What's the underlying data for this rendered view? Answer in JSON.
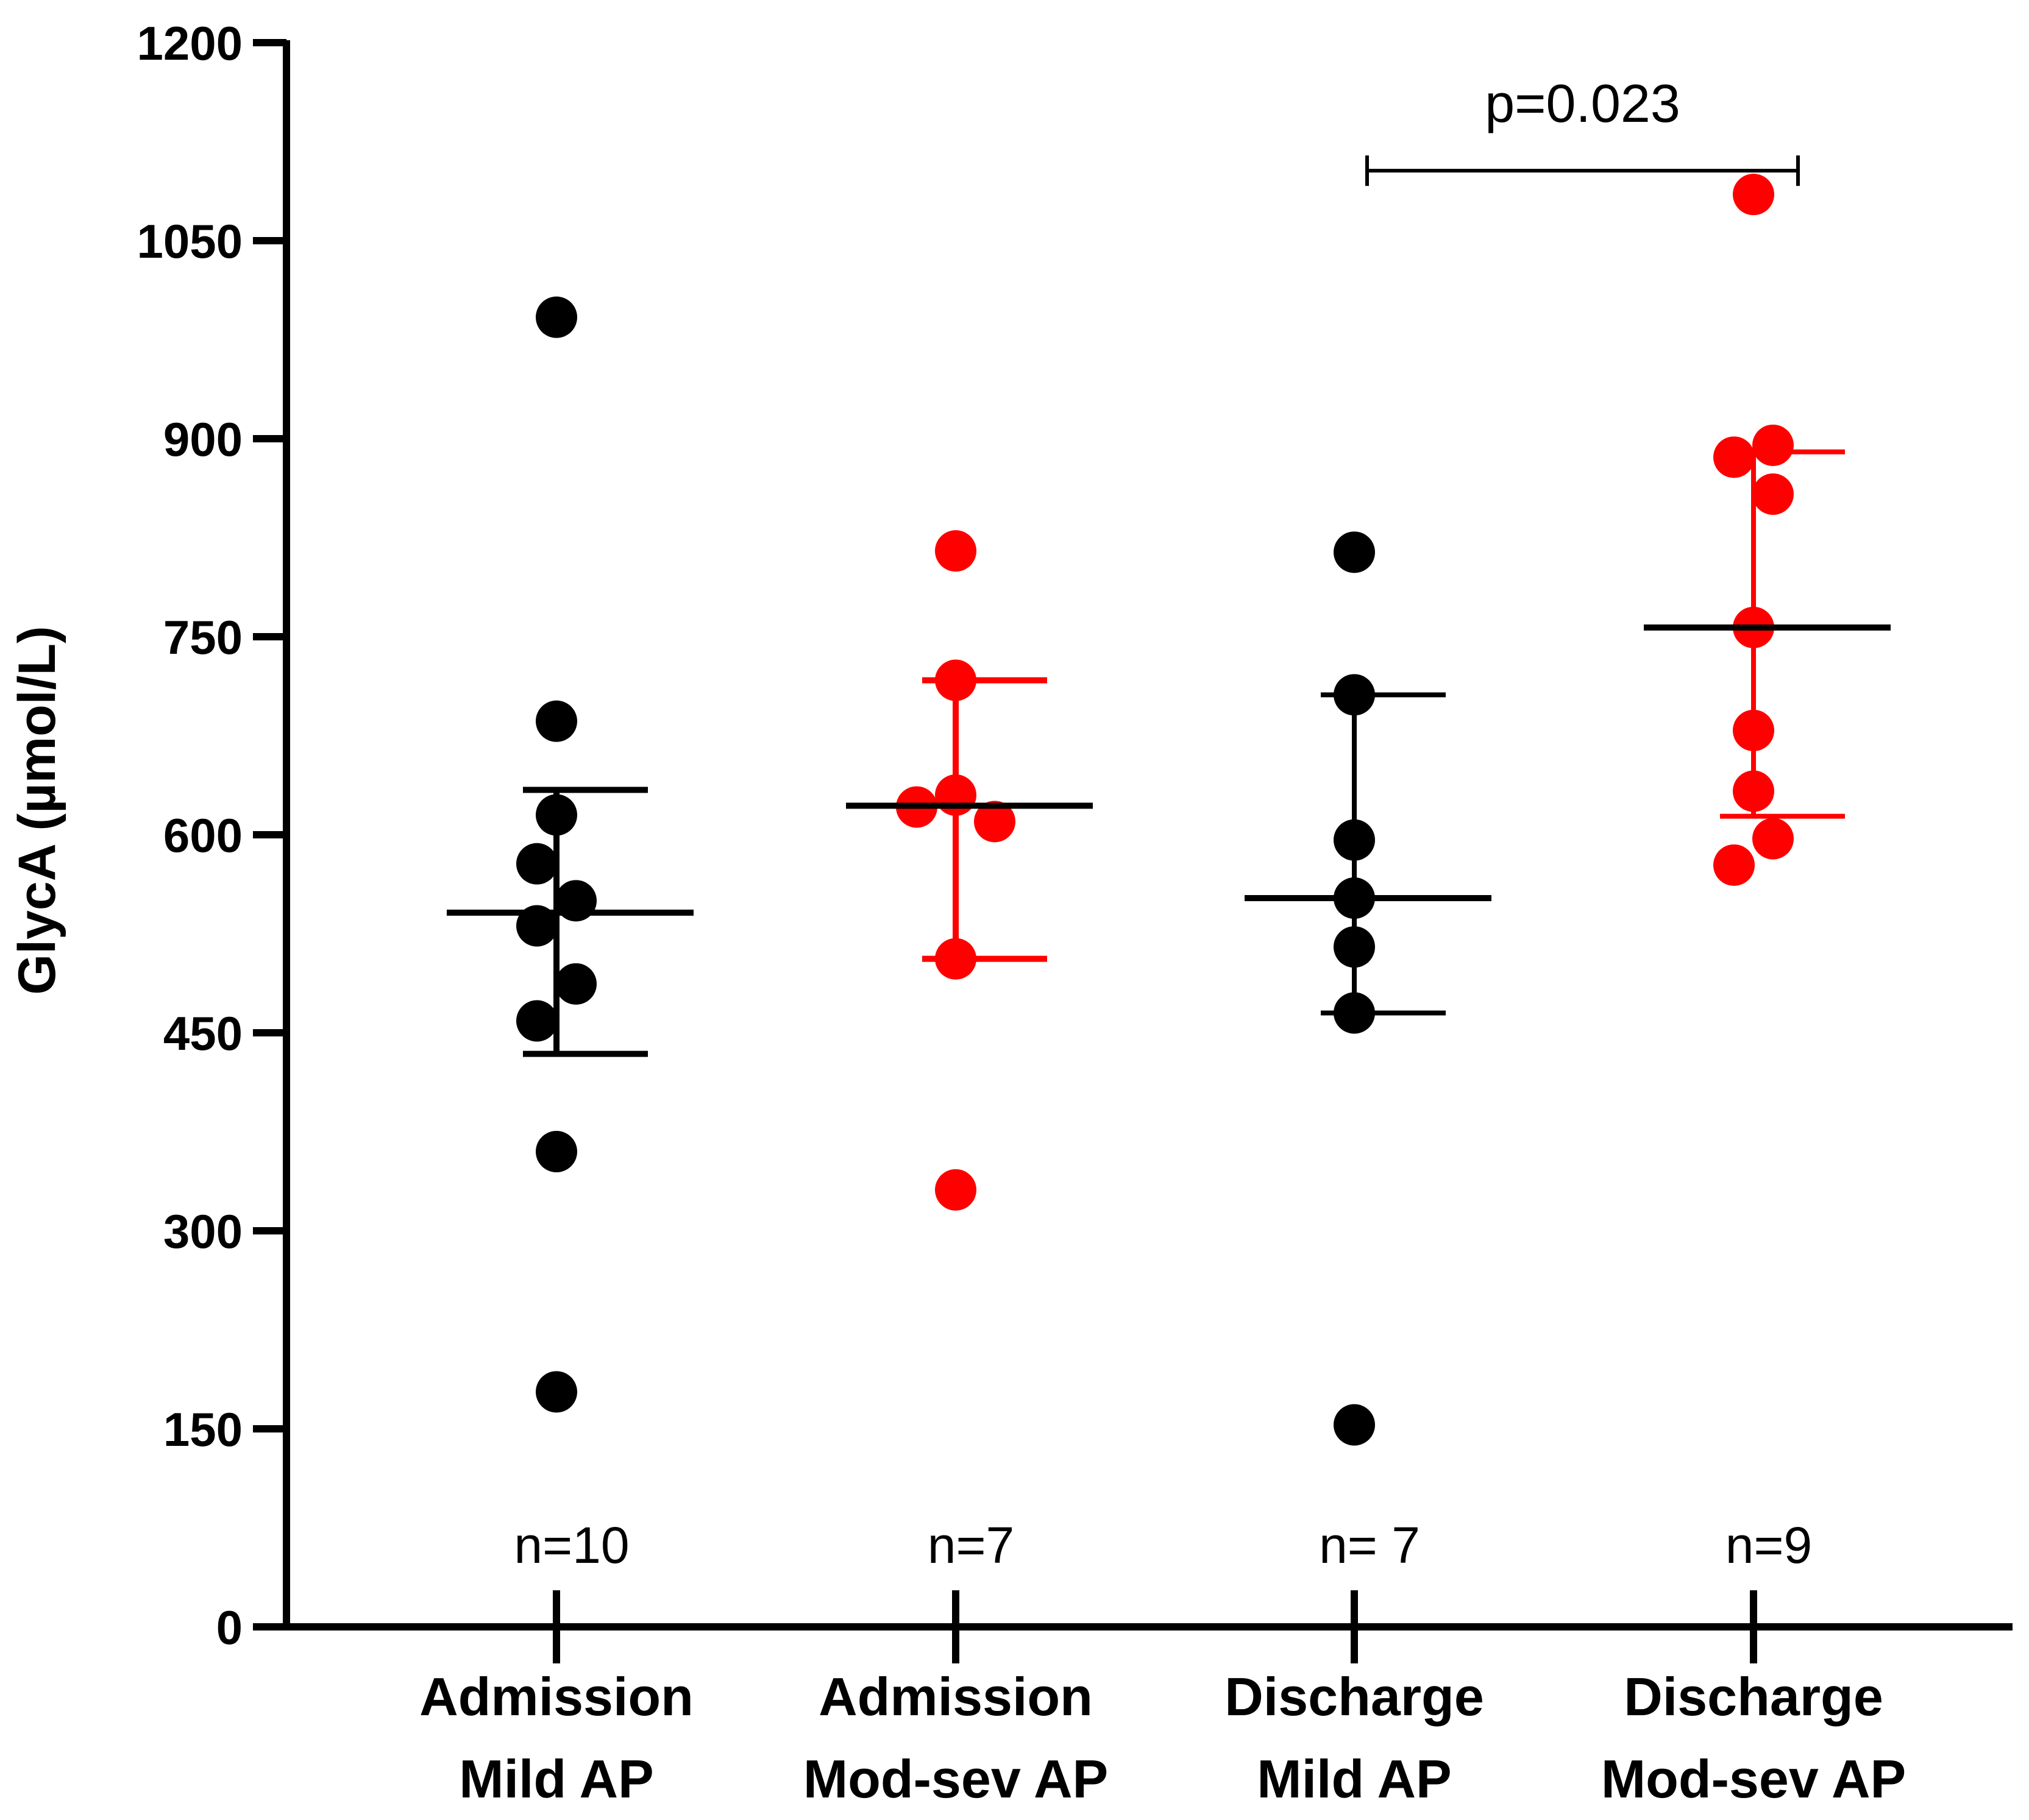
{
  "chart_data": {
    "type": "scatter",
    "ylabel": "GlycA (µmol/L)",
    "xlabel": "",
    "ylim": [
      0,
      1200
    ],
    "yticks": [
      0,
      150,
      300,
      450,
      600,
      750,
      900,
      1050,
      1200
    ],
    "grid": false,
    "colors": {
      "mild": "#000000",
      "modsev": "#ff0000",
      "axis": "#000000"
    },
    "groups": [
      {
        "label_line1": "Admission",
        "label_line2": "Mild AP",
        "color": "#000000",
        "n_label": "n=10",
        "median": 541,
        "iqr": [
          434,
          634
        ],
        "points": [
          {
            "dx": 0,
            "y": 992
          },
          {
            "dx": 0,
            "y": 686
          },
          {
            "dx": 0,
            "y": 615
          },
          {
            "dx": -0.1,
            "y": 578
          },
          {
            "dx": 0.1,
            "y": 550
          },
          {
            "dx": -0.1,
            "y": 531
          },
          {
            "dx": 0.1,
            "y": 487
          },
          {
            "dx": -0.1,
            "y": 459
          },
          {
            "dx": 0,
            "y": 360
          },
          {
            "dx": 0,
            "y": 178
          }
        ]
      },
      {
        "label_line1": "Admission",
        "label_line2": "Mod-sev AP",
        "color": "#ff0000",
        "n_label": "n=7",
        "median": 622,
        "iqr": [
          506,
          717
        ],
        "points": [
          {
            "dx": 0,
            "y": 815
          },
          {
            "dx": 0,
            "y": 717
          },
          {
            "dx": 0,
            "y": 630
          },
          {
            "dx": -0.2,
            "y": 621
          },
          {
            "dx": 0.2,
            "y": 610
          },
          {
            "dx": 0,
            "y": 506
          },
          {
            "dx": 0,
            "y": 331
          }
        ]
      },
      {
        "label_line1": "Discharge",
        "label_line2": "Mild AP",
        "color": "#000000",
        "n_label": "n= 7",
        "median": 552,
        "iqr": [
          465,
          706
        ],
        "points": [
          {
            "dx": 0,
            "y": 814
          },
          {
            "dx": 0,
            "y": 706
          },
          {
            "dx": 0,
            "y": 596
          },
          {
            "dx": 0,
            "y": 552
          },
          {
            "dx": 0,
            "y": 515
          },
          {
            "dx": 0,
            "y": 465
          },
          {
            "dx": 0,
            "y": 153
          }
        ]
      },
      {
        "label_line1": "Discharge",
        "label_line2": "Mod-sev AP",
        "color": "#ff0000",
        "n_label": "n=9",
        "median": 757,
        "iqr": [
          614,
          890
        ],
        "points": [
          {
            "dx": 0,
            "y": 1085
          },
          {
            "dx": 0.1,
            "y": 895
          },
          {
            "dx": -0.1,
            "y": 886
          },
          {
            "dx": 0.1,
            "y": 858
          },
          {
            "dx": 0,
            "y": 757
          },
          {
            "dx": 0,
            "y": 679
          },
          {
            "dx": 0,
            "y": 633
          },
          {
            "dx": 0.1,
            "y": 597
          },
          {
            "dx": -0.1,
            "y": 577
          }
        ]
      }
    ],
    "annotation": {
      "text": "p=0.023",
      "from_group": 2,
      "to_group": 3,
      "y": 1103
    }
  }
}
